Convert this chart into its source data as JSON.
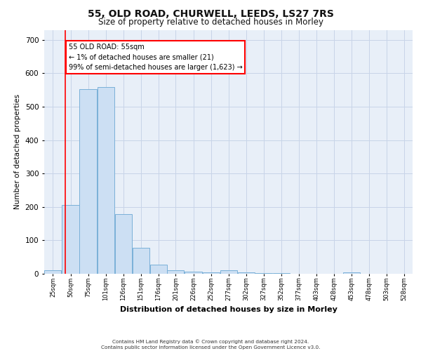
{
  "title": "55, OLD ROAD, CHURWELL, LEEDS, LS27 7RS",
  "subtitle": "Size of property relative to detached houses in Morley",
  "xlabel": "Distribution of detached houses by size in Morley",
  "ylabel": "Number of detached properties",
  "footer_line1": "Contains HM Land Registry data © Crown copyright and database right 2024.",
  "footer_line2": "Contains public sector information licensed under the Open Government Licence v3.0.",
  "annotation_line1": "55 OLD ROAD: 55sqm",
  "annotation_line2": "← 1% of detached houses are smaller (21)",
  "annotation_line3": "99% of semi-detached houses are larger (1,623) →",
  "bar_left_edges": [
    25,
    50,
    75,
    101,
    126,
    151,
    176,
    201,
    226,
    252,
    277,
    302,
    327,
    352,
    377,
    403,
    428,
    453,
    478,
    503,
    528
  ],
  "bar_heights": [
    10,
    205,
    553,
    558,
    178,
    78,
    28,
    10,
    7,
    5,
    10,
    5,
    3,
    2,
    1,
    0,
    0,
    5,
    0,
    1,
    0
  ],
  "bar_widths": [
    25,
    26,
    26,
    25,
    25,
    25,
    25,
    25,
    26,
    25,
    25,
    25,
    25,
    25,
    26,
    25,
    25,
    25,
    25,
    25,
    25
  ],
  "bar_color": "#ccdff3",
  "bar_edge_color": "#7ab0d8",
  "grid_color": "#c8d4e8",
  "background_color": "#e8eff8",
  "red_line_x": 55,
  "ylim": [
    0,
    730
  ],
  "yticks": [
    0,
    100,
    200,
    300,
    400,
    500,
    600,
    700
  ],
  "xlim_left": 25,
  "xlim_right": 553,
  "tick_labels": [
    "25sqm",
    "50sqm",
    "75sqm",
    "101sqm",
    "126sqm",
    "151sqm",
    "176sqm",
    "201sqm",
    "226sqm",
    "252sqm",
    "277sqm",
    "302sqm",
    "327sqm",
    "352sqm",
    "377sqm",
    "403sqm",
    "428sqm",
    "453sqm",
    "478sqm",
    "503sqm",
    "528sqm"
  ],
  "title_fontsize": 10,
  "subtitle_fontsize": 8.5,
  "ylabel_fontsize": 7.5,
  "xlabel_fontsize": 8,
  "ytick_fontsize": 7.5,
  "xtick_fontsize": 6
}
